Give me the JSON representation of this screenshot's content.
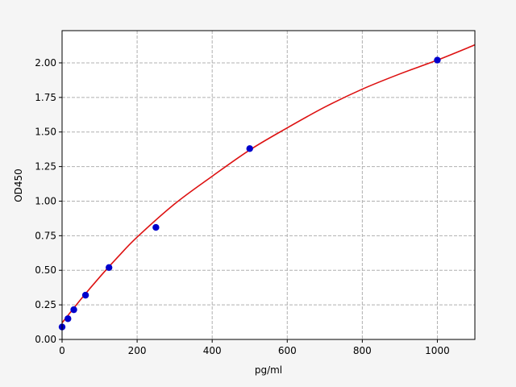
{
  "chart_data": {
    "type": "scatter",
    "title": "",
    "xlabel": "pg/ml",
    "ylabel": "OD450",
    "xlim": [
      0,
      1100
    ],
    "ylim": [
      0,
      2.233
    ],
    "xticks": [
      0,
      200,
      400,
      600,
      800,
      1000
    ],
    "yticks": [
      0,
      0.25,
      0.5,
      0.75,
      1.0,
      1.25,
      1.5,
      1.75,
      2.0
    ],
    "xtick_labels": [
      "0",
      "200",
      "400",
      "600",
      "800",
      "1000"
    ],
    "ytick_labels": [
      "0.00",
      "0.25",
      "0.50",
      "0.75",
      "1.00",
      "1.25",
      "1.50",
      "1.75",
      "2.00"
    ],
    "grid": true,
    "grid_style": "dashed",
    "points": {
      "color": "#0000cc",
      "x": [
        0,
        15.6,
        31.25,
        62.5,
        125,
        250,
        500,
        1000
      ],
      "y": [
        0.09,
        0.15,
        0.215,
        0.32,
        0.52,
        0.81,
        1.38,
        2.02
      ]
    },
    "fit_curve": {
      "color": "#dd1111",
      "x": [
        0,
        50,
        100,
        150,
        200,
        300,
        400,
        500,
        600,
        700,
        800,
        900,
        1000,
        1100
      ],
      "y": [
        0.12,
        0.29,
        0.45,
        0.6,
        0.74,
        0.98,
        1.18,
        1.37,
        1.53,
        1.68,
        1.81,
        1.92,
        2.02,
        2.13
      ]
    }
  }
}
